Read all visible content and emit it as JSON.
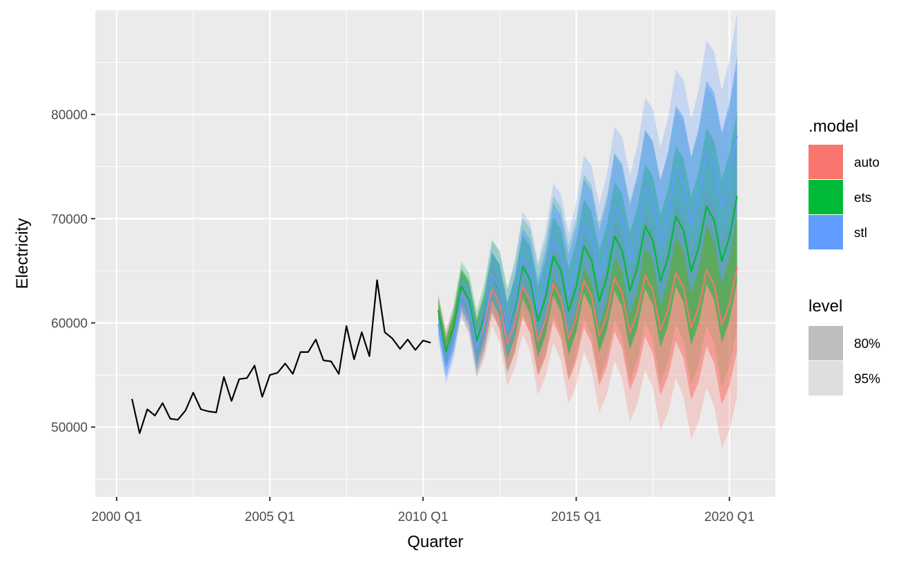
{
  "chart_data": {
    "type": "line",
    "title": "",
    "xlabel": "Quarter",
    "ylabel": "Electricity",
    "xlim": [
      1999.3,
      2021.5
    ],
    "ylim": [
      43300,
      90000
    ],
    "x_ticks": [
      {
        "value": 2000.0,
        "label": "2000 Q1"
      },
      {
        "value": 2005.0,
        "label": "2005 Q1"
      },
      {
        "value": 2010.0,
        "label": "2010 Q1"
      },
      {
        "value": 2015.0,
        "label": "2015 Q1"
      },
      {
        "value": 2020.0,
        "label": "2020 Q1"
      }
    ],
    "y_ticks": [
      {
        "value": 50000,
        "label": "50000"
      },
      {
        "value": 60000,
        "label": "60000"
      },
      {
        "value": 70000,
        "label": "70000"
      },
      {
        "value": 80000,
        "label": "80000"
      }
    ],
    "panel_background": "#ebebeb",
    "grid": true,
    "history": {
      "color": "#000000",
      "start": 2000.5,
      "step": 0.25,
      "values": [
        52700,
        49400,
        51700,
        51100,
        52300,
        50800,
        50700,
        51600,
        53300,
        51700,
        51500,
        51400,
        54800,
        52500,
        54600,
        54700,
        55900,
        52900,
        55000,
        55200,
        56100,
        55100,
        57200,
        57200,
        58400,
        56400,
        56300,
        55100,
        59700,
        56500,
        59100,
        56800,
        64100,
        59100,
        58500,
        57500,
        58400,
        57400,
        58300,
        58100
      ]
    },
    "forecast": {
      "start": 2010.5,
      "step": 0.25,
      "seasonal": [
        1.0,
        -1.6,
        -0.3,
        2.0
      ],
      "models": [
        {
          "name": "auto",
          "color": "#F8766D",
          "base": 59800,
          "slope": 65,
          "amp": 1500,
          "k80": 180,
          "k95": 280
        },
        {
          "name": "ets",
          "color": "#00BA38",
          "base": 59600,
          "slope": 240,
          "amp": 1600,
          "k80": 185,
          "k95": 285
        },
        {
          "name": "stl",
          "color": "#619CFF",
          "base": 58200,
          "slope": 420,
          "amp": 1700,
          "k80": 170,
          "k95": 265
        }
      ]
    },
    "legend": {
      "position": "right",
      "model_title": ".model",
      "model_items": [
        {
          "label": "auto",
          "color": "#F8766D"
        },
        {
          "label": "ets",
          "color": "#00BA38"
        },
        {
          "label": "stl",
          "color": "#619CFF"
        }
      ],
      "level_title": "level",
      "level_items": [
        {
          "label": "80%",
          "color": "#bebebe"
        },
        {
          "label": "95%",
          "color": "#dedede"
        }
      ]
    }
  }
}
